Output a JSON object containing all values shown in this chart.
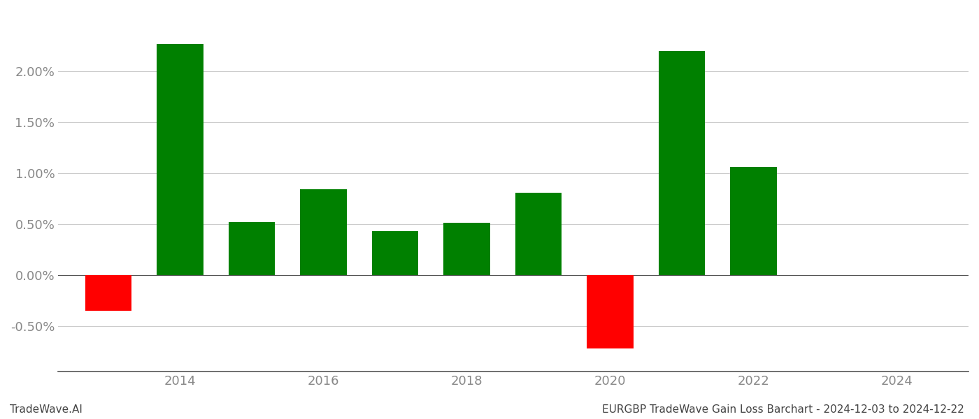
{
  "years": [
    2013,
    2014,
    2015,
    2016,
    2017,
    2018,
    2019,
    2020,
    2021,
    2022
  ],
  "values": [
    -0.0035,
    0.0227,
    0.0052,
    0.0084,
    0.0043,
    0.0051,
    0.0081,
    -0.0072,
    0.022,
    0.0106
  ],
  "colors": [
    "#ff0000",
    "#008000",
    "#008000",
    "#008000",
    "#008000",
    "#008000",
    "#008000",
    "#ff0000",
    "#008000",
    "#008000"
  ],
  "title": "EURGBP TradeWave Gain Loss Barchart - 2024-12-03 to 2024-12-22",
  "watermark": "TradeWave.AI",
  "xlim": [
    2012.3,
    2025.0
  ],
  "ylim": [
    -0.0095,
    0.026
  ],
  "yticks": [
    -0.005,
    0.0,
    0.005,
    0.01,
    0.015,
    0.02
  ],
  "ytick_labels": [
    "-0.50%",
    "0.00%",
    "0.50%",
    "1.00%",
    "1.50%",
    "2.00%"
  ],
  "xticks": [
    2014,
    2016,
    2018,
    2020,
    2022,
    2024
  ],
  "bar_width": 0.65,
  "background_color": "#ffffff",
  "grid_color": "#cccccc",
  "title_fontsize": 11,
  "watermark_fontsize": 11,
  "tick_fontsize": 13,
  "tick_color": "#888888",
  "spine_color": "#555555"
}
